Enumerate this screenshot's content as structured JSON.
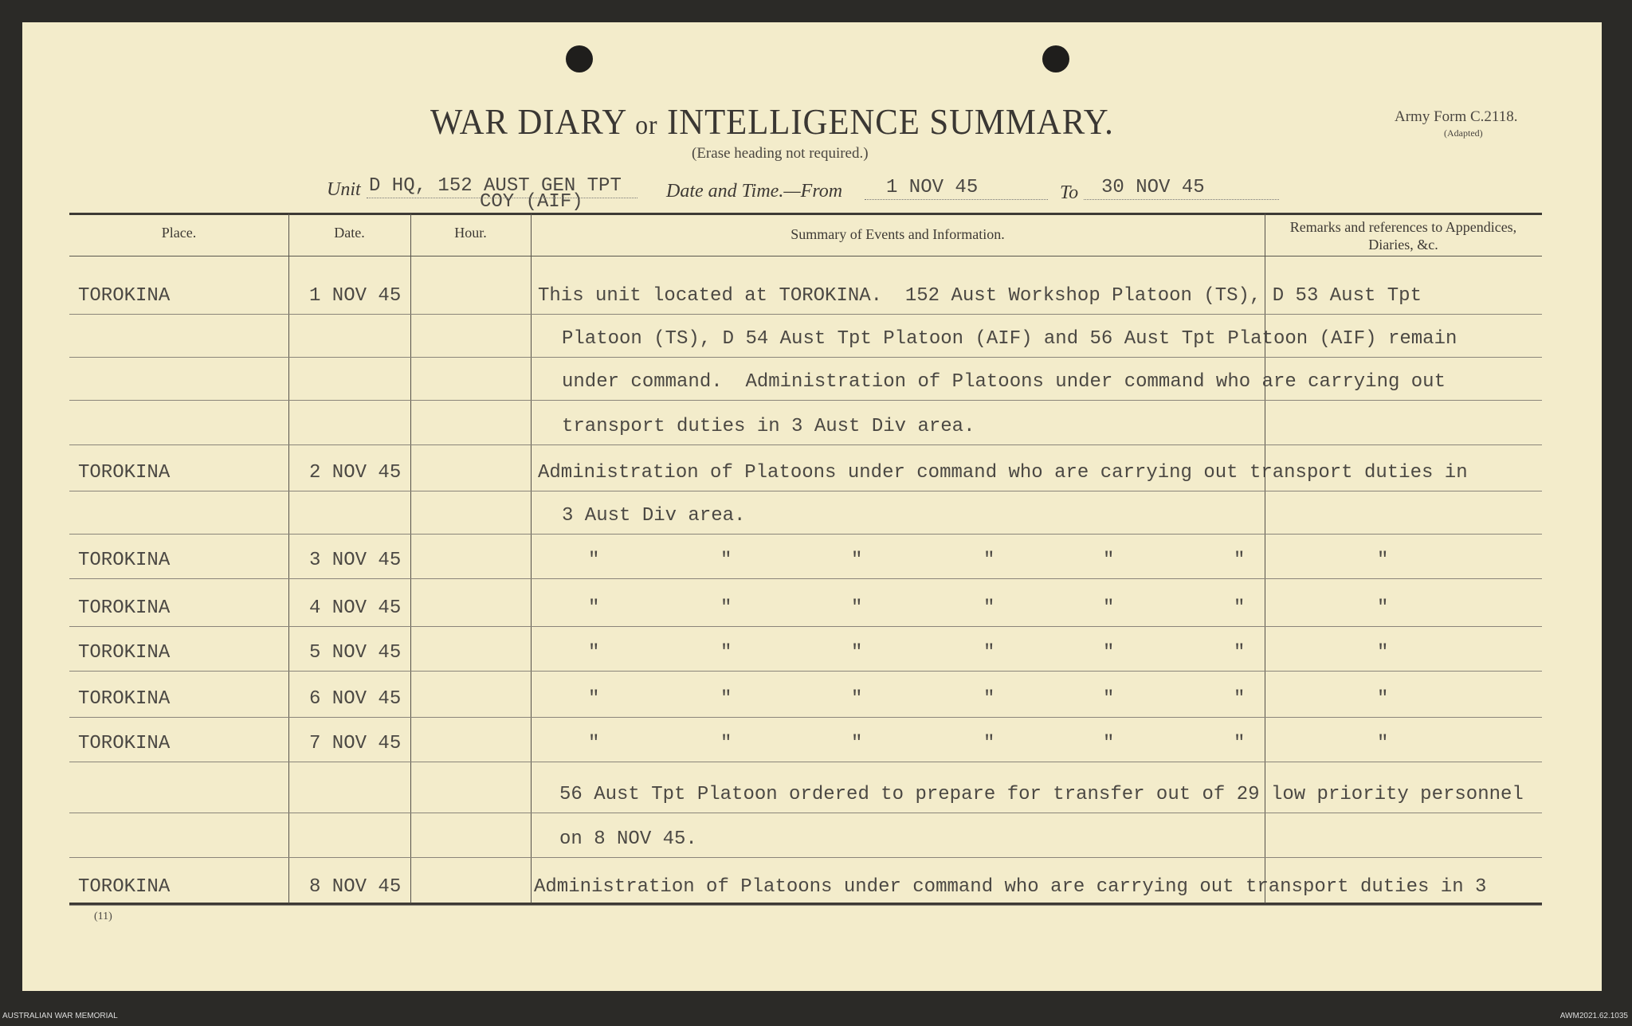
{
  "header": {
    "title_a": "WAR DIARY",
    "title_or": "or",
    "title_b": "INTELLIGENCE SUMMARY.",
    "subtitle": "(Erase heading not required.)",
    "form": "Army Form C.2118.",
    "adapted": "(Adapted)"
  },
  "fields": {
    "unit_label": "Unit",
    "unit_line1": "D HQ, 152 AUST GEN TPT",
    "unit_line2": "COY (AIF)",
    "date_label": "Date and Time.—From",
    "from": "1 NOV 45",
    "to_label": "To",
    "to": "30 NOV 45"
  },
  "columns": {
    "place": "Place.",
    "date": "Date.",
    "hour": "Hour.",
    "summary": "Summary of Events and Information.",
    "remarks": "Remarks and references to Appendices, Diaries, &c."
  },
  "lines": [
    {
      "place": "TOROKINA",
      "date": "1 NOV 45",
      "text": "This unit located at TOROKINA.  152 Aust Workshop Platoon (TS), D 53 Aust Tpt"
    },
    {
      "place": "",
      "date": "",
      "text": "Platoon (TS), D 54 Aust Tpt Platoon (AIF) and 56 Aust Tpt Platoon (AIF) remain"
    },
    {
      "place": "",
      "date": "",
      "text": "under command.  Administration of Platoons under command who are carrying out"
    },
    {
      "place": "",
      "date": "",
      "text": "transport duties in 3 Aust Div area."
    },
    {
      "place": "TOROKINA",
      "date": "2 NOV 45",
      "text": "Administration of Platoons under command who are carrying out transport duties in"
    },
    {
      "place": "",
      "date": "",
      "text": "3 Aust Div area."
    },
    {
      "place": "TOROKINA",
      "date": "3 NOV 45",
      "text": ""
    },
    {
      "place": "TOROKINA",
      "date": "4 NOV 45",
      "text": ""
    },
    {
      "place": "TOROKINA",
      "date": "5 NOV 45",
      "text": ""
    },
    {
      "place": "TOROKINA",
      "date": "6 NOV 45",
      "text": ""
    },
    {
      "place": "TOROKINA",
      "date": "7 NOV 45",
      "text": ""
    },
    {
      "place": "",
      "date": "",
      "text": "56 Aust Tpt Platoon ordered to prepare for transfer out of 29 low priority personnel"
    },
    {
      "place": "",
      "date": "",
      "text": "on 8 NOV 45."
    },
    {
      "place": "TOROKINA",
      "date": "8 NOV 45",
      "text": "Administration of Platoons under command who are carrying out transport duties in 3"
    }
  ],
  "ditto": "\"",
  "page_number": "(11)",
  "footer": {
    "left": "AUSTRALIAN WAR MEMORIAL",
    "right": "AWM2021.62.1035"
  }
}
